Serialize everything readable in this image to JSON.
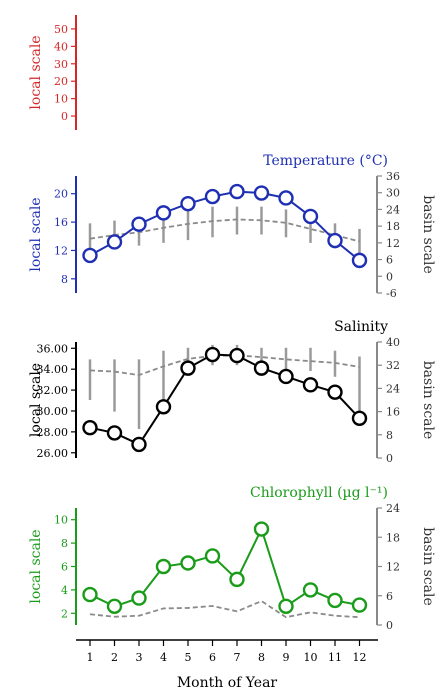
{
  "chart_data": [
    {
      "type": "line",
      "title": "",
      "local_axis_label": "local scale",
      "local_ticks": [
        0,
        10,
        20,
        30,
        40,
        50
      ],
      "local_range": [
        -8,
        58
      ],
      "color": "#d62728",
      "series": []
    },
    {
      "type": "line",
      "title": "Temperature (°C)",
      "local_axis_label": "local scale",
      "basin_axis_label": "basin scale",
      "local_ticks": [
        8,
        12,
        16,
        20
      ],
      "local_range": [
        6,
        22.5
      ],
      "basin_ticks": [
        -6,
        0,
        6,
        12,
        18,
        24,
        30,
        36
      ],
      "basin_range": [
        -6,
        36
      ],
      "color": "#1f2fb4",
      "x": [
        1,
        2,
        3,
        4,
        5,
        6,
        7,
        8,
        9,
        10,
        11,
        12
      ],
      "series": [
        {
          "axis": "local",
          "style": "solid-circles",
          "values": [
            11.3,
            13.2,
            15.7,
            17.3,
            18.6,
            19.6,
            20.3,
            20.1,
            19.4,
            16.8,
            13.4,
            10.6
          ]
        },
        {
          "axis": "basin",
          "style": "dashed",
          "values": [
            13.5,
            14.8,
            15.8,
            17.4,
            18.8,
            19.8,
            20.4,
            20.1,
            19.2,
            17.0,
            14.8,
            12.5
          ]
        },
        {
          "axis": "basin",
          "style": "range-bars",
          "low": [
            9,
            10,
            11,
            12,
            13,
            14,
            15,
            15,
            14,
            12,
            10,
            8
          ],
          "high": [
            19,
            20,
            21,
            23,
            24,
            25,
            25,
            25,
            24,
            22,
            19,
            17
          ]
        }
      ]
    },
    {
      "type": "line",
      "title": "Salinity",
      "local_axis_label": "local scale",
      "basin_axis_label": "basin scale",
      "local_ticks": [
        "26.00",
        "28.00",
        "30.00",
        "32.00",
        "34.00",
        "36.00"
      ],
      "local_range": [
        25.5,
        36.6
      ],
      "basin_ticks": [
        0,
        8,
        16,
        24,
        32,
        40
      ],
      "basin_range": [
        0,
        40
      ],
      "color": "#000000",
      "x": [
        1,
        2,
        3,
        4,
        5,
        6,
        7,
        8,
        9,
        10,
        11,
        12
      ],
      "series": [
        {
          "axis": "local",
          "style": "solid-circles",
          "values": [
            28.4,
            27.9,
            26.8,
            30.4,
            34.1,
            35.4,
            35.3,
            34.1,
            33.3,
            32.5,
            31.8,
            29.3
          ]
        },
        {
          "axis": "basin",
          "style": "dashed",
          "values": [
            30.2,
            29.8,
            28.6,
            31.6,
            34.2,
            35.2,
            35.4,
            34.8,
            34.0,
            33.4,
            32.8,
            31.4
          ]
        },
        {
          "axis": "basin",
          "style": "range-bars",
          "low": [
            20,
            16,
            10,
            16,
            30,
            32,
            32,
            30,
            30,
            30,
            28,
            14
          ],
          "high": [
            34,
            34,
            34,
            37,
            38,
            39,
            39,
            38,
            38,
            38,
            37,
            35
          ]
        }
      ]
    },
    {
      "type": "line",
      "title": "Chlorophyll (µg l⁻¹)",
      "local_axis_label": "local scale",
      "basin_axis_label": "basin scale",
      "local_ticks": [
        2,
        4,
        6,
        8,
        10
      ],
      "local_range": [
        1,
        11
      ],
      "basin_ticks": [
        0,
        6,
        12,
        18,
        24
      ],
      "basin_range": [
        0,
        24
      ],
      "color": "#1a9c1a",
      "x": [
        1,
        2,
        3,
        4,
        5,
        6,
        7,
        8,
        9,
        10,
        11,
        12
      ],
      "series": [
        {
          "axis": "local",
          "style": "solid-circles",
          "values": [
            3.6,
            2.6,
            3.3,
            6.0,
            6.3,
            6.9,
            4.9,
            9.2,
            2.6,
            4.0,
            3.1,
            2.7
          ]
        },
        {
          "axis": "basin",
          "style": "dashed",
          "values": [
            2.2,
            1.7,
            1.9,
            3.4,
            3.5,
            3.9,
            2.8,
            4.9,
            1.6,
            2.6,
            1.9,
            1.6
          ]
        }
      ]
    }
  ],
  "x_axis": {
    "label": "Month of Year",
    "ticks": [
      1,
      2,
      3,
      4,
      5,
      6,
      7,
      8,
      9,
      10,
      11,
      12
    ]
  }
}
